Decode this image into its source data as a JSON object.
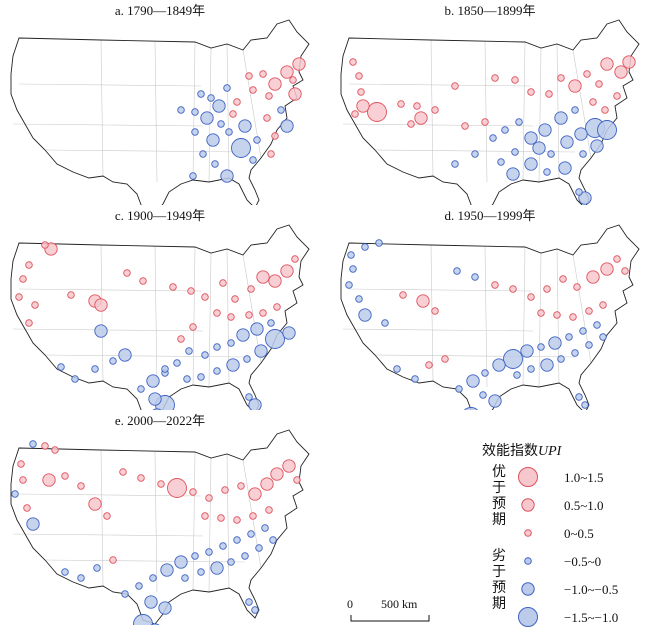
{
  "panels": [
    {
      "title": "a. 1790—1849年",
      "dots": [
        [
          270,
          70,
          2
        ],
        [
          282,
          58,
          2
        ],
        [
          294,
          50,
          2
        ],
        [
          288,
          66,
          1
        ],
        [
          264,
          82,
          1
        ],
        [
          248,
          76,
          1
        ],
        [
          232,
          88,
          1
        ],
        [
          222,
          74,
          -1
        ],
        [
          214,
          92,
          -2
        ],
        [
          202,
          104,
          -2
        ],
        [
          190,
          118,
          -1
        ],
        [
          208,
          126,
          -2
        ],
        [
          224,
          118,
          -1
        ],
        [
          240,
          112,
          -2
        ],
        [
          236,
          134,
          -3
        ],
        [
          252,
          126,
          -1
        ],
        [
          262,
          104,
          1
        ],
        [
          276,
          96,
          -1
        ],
        [
          282,
          112,
          -2
        ],
        [
          266,
          140,
          1
        ],
        [
          190,
          98,
          -1
        ],
        [
          176,
          96,
          -1
        ],
        [
          196,
          80,
          -1
        ],
        [
          206,
          84,
          -1
        ],
        [
          244,
          62,
          1
        ],
        [
          258,
          60,
          1
        ],
        [
          228,
          100,
          1
        ],
        [
          216,
          110,
          -1
        ],
        [
          198,
          140,
          -1
        ],
        [
          210,
          150,
          -1
        ],
        [
          188,
          162,
          -1
        ],
        [
          222,
          162,
          -2
        ],
        [
          248,
          146,
          -1
        ],
        [
          270,
          122,
          1
        ],
        [
          290,
          80,
          2
        ]
      ]
    },
    {
      "title": "b. 1850—1899年",
      "dots": [
        [
          18,
          48,
          1
        ],
        [
          24,
          62,
          1
        ],
        [
          26,
          78,
          1
        ],
        [
          20,
          100,
          1
        ],
        [
          28,
          92,
          2
        ],
        [
          42,
          98,
          3
        ],
        [
          66,
          90,
          1
        ],
        [
          82,
          92,
          1
        ],
        [
          76,
          110,
          1
        ],
        [
          86,
          104,
          2
        ],
        [
          100,
          96,
          1
        ],
        [
          120,
          72,
          1
        ],
        [
          130,
          112,
          1
        ],
        [
          150,
          108,
          1
        ],
        [
          160,
          64,
          1
        ],
        [
          180,
          66,
          1
        ],
        [
          196,
          78,
          1
        ],
        [
          214,
          80,
          1
        ],
        [
          226,
          64,
          1
        ],
        [
          240,
          72,
          2
        ],
        [
          252,
          60,
          1
        ],
        [
          264,
          70,
          1
        ],
        [
          272,
          50,
          2
        ],
        [
          286,
          58,
          2
        ],
        [
          294,
          48,
          2
        ],
        [
          282,
          82,
          1
        ],
        [
          270,
          96,
          1
        ],
        [
          258,
          88,
          1
        ],
        [
          240,
          96,
          -1
        ],
        [
          226,
          104,
          -2
        ],
        [
          210,
          116,
          -2
        ],
        [
          196,
          124,
          -2
        ],
        [
          204,
          134,
          -2
        ],
        [
          216,
          140,
          -1
        ],
        [
          232,
          128,
          -2
        ],
        [
          246,
          120,
          -2
        ],
        [
          260,
          114,
          -3
        ],
        [
          272,
          116,
          -3
        ],
        [
          262,
          132,
          -2
        ],
        [
          248,
          140,
          -1
        ],
        [
          230,
          154,
          -2
        ],
        [
          212,
          158,
          -1
        ],
        [
          196,
          150,
          -2
        ],
        [
          178,
          160,
          -2
        ],
        [
          166,
          148,
          -1
        ],
        [
          180,
          138,
          -1
        ],
        [
          184,
          108,
          -1
        ],
        [
          170,
          116,
          -1
        ],
        [
          158,
          124,
          -1
        ],
        [
          244,
          178,
          -1
        ],
        [
          250,
          184,
          -2
        ],
        [
          140,
          140,
          -1
        ],
        [
          120,
          150,
          -1
        ]
      ]
    },
    {
      "title": "c. 1900—1949年",
      "dots": [
        [
          24,
          46,
          1
        ],
        [
          40,
          26,
          1
        ],
        [
          46,
          30,
          2
        ],
        [
          18,
          60,
          1
        ],
        [
          14,
          78,
          1
        ],
        [
          30,
          86,
          1
        ],
        [
          24,
          104,
          1
        ],
        [
          66,
          76,
          1
        ],
        [
          90,
          82,
          2
        ],
        [
          96,
          86,
          2
        ],
        [
          96,
          112,
          -2
        ],
        [
          122,
          54,
          1
        ],
        [
          138,
          62,
          1
        ],
        [
          168,
          68,
          1
        ],
        [
          186,
          72,
          1
        ],
        [
          200,
          78,
          1
        ],
        [
          218,
          64,
          1
        ],
        [
          230,
          80,
          1
        ],
        [
          246,
          70,
          1
        ],
        [
          258,
          58,
          2
        ],
        [
          270,
          62,
          2
        ],
        [
          282,
          52,
          2
        ],
        [
          290,
          40,
          1
        ],
        [
          212,
          94,
          1
        ],
        [
          226,
          98,
          1
        ],
        [
          244,
          96,
          1
        ],
        [
          258,
          94,
          1
        ],
        [
          272,
          88,
          1
        ],
        [
          266,
          104,
          -1
        ],
        [
          252,
          110,
          -2
        ],
        [
          238,
          116,
          -2
        ],
        [
          226,
          124,
          -1
        ],
        [
          212,
          128,
          -1
        ],
        [
          200,
          136,
          -1
        ],
        [
          184,
          132,
          -1
        ],
        [
          172,
          144,
          -1
        ],
        [
          160,
          154,
          -1
        ],
        [
          148,
          162,
          -2
        ],
        [
          136,
          170,
          -1
        ],
        [
          150,
          180,
          -2
        ],
        [
          160,
          186,
          -3
        ],
        [
          182,
          160,
          -1
        ],
        [
          196,
          158,
          -1
        ],
        [
          212,
          152,
          -1
        ],
        [
          228,
          146,
          -2
        ],
        [
          242,
          140,
          -1
        ],
        [
          256,
          132,
          -2
        ],
        [
          270,
          120,
          -3
        ],
        [
          284,
          114,
          -2
        ],
        [
          120,
          136,
          -2
        ],
        [
          108,
          142,
          -1
        ],
        [
          90,
          150,
          -1
        ],
        [
          70,
          160,
          -1
        ],
        [
          56,
          148,
          -1
        ],
        [
          244,
          178,
          -1
        ],
        [
          250,
          186,
          -2
        ],
        [
          152,
          196,
          -2
        ],
        [
          160,
          150,
          -1
        ],
        [
          176,
          120,
          1
        ],
        [
          188,
          108,
          1
        ]
      ]
    },
    {
      "title": "d. 1950—1999年",
      "dots": [
        [
          16,
          36,
          -1
        ],
        [
          30,
          28,
          -1
        ],
        [
          44,
          24,
          -1
        ],
        [
          18,
          50,
          -1
        ],
        [
          14,
          66,
          -1
        ],
        [
          24,
          80,
          -1
        ],
        [
          30,
          96,
          -2
        ],
        [
          50,
          104,
          -1
        ],
        [
          68,
          76,
          1
        ],
        [
          88,
          82,
          2
        ],
        [
          100,
          92,
          1
        ],
        [
          122,
          52,
          -1
        ],
        [
          140,
          58,
          -1
        ],
        [
          160,
          66,
          1
        ],
        [
          178,
          70,
          1
        ],
        [
          196,
          78,
          1
        ],
        [
          212,
          70,
          1
        ],
        [
          228,
          60,
          1
        ],
        [
          242,
          68,
          1
        ],
        [
          258,
          58,
          2
        ],
        [
          272,
          50,
          2
        ],
        [
          282,
          40,
          1
        ],
        [
          290,
          52,
          1
        ],
        [
          206,
          94,
          1
        ],
        [
          222,
          96,
          1
        ],
        [
          238,
          98,
          1
        ],
        [
          254,
          92,
          1
        ],
        [
          268,
          86,
          1
        ],
        [
          262,
          106,
          -1
        ],
        [
          248,
          112,
          -1
        ],
        [
          234,
          118,
          -1
        ],
        [
          220,
          124,
          -2
        ],
        [
          206,
          128,
          -1
        ],
        [
          192,
          132,
          -2
        ],
        [
          178,
          140,
          -3
        ],
        [
          164,
          146,
          -2
        ],
        [
          150,
          154,
          -1
        ],
        [
          138,
          162,
          -2
        ],
        [
          124,
          170,
          -1
        ],
        [
          148,
          176,
          -1
        ],
        [
          160,
          182,
          -2
        ],
        [
          182,
          156,
          -1
        ],
        [
          196,
          150,
          -1
        ],
        [
          212,
          146,
          -2
        ],
        [
          226,
          140,
          -1
        ],
        [
          240,
          134,
          -1
        ],
        [
          254,
          126,
          -1
        ],
        [
          268,
          118,
          -1
        ],
        [
          110,
          140,
          1
        ],
        [
          94,
          146,
          1
        ],
        [
          80,
          160,
          -1
        ],
        [
          62,
          150,
          -1
        ],
        [
          244,
          178,
          -1
        ],
        [
          250,
          186,
          -1
        ],
        [
          136,
          198,
          -3
        ],
        [
          150,
          206,
          -2
        ],
        [
          142,
          214,
          -1
        ]
      ]
    },
    {
      "title": "e. 2000—2022年",
      "dots": [
        [
          16,
          40,
          1
        ],
        [
          28,
          20,
          -1
        ],
        [
          40,
          22,
          1
        ],
        [
          50,
          26,
          1
        ],
        [
          18,
          56,
          1
        ],
        [
          10,
          70,
          -1
        ],
        [
          22,
          84,
          1
        ],
        [
          28,
          100,
          -2
        ],
        [
          44,
          56,
          2
        ],
        [
          60,
          52,
          1
        ],
        [
          76,
          62,
          1
        ],
        [
          90,
          80,
          2
        ],
        [
          102,
          92,
          1
        ],
        [
          118,
          48,
          1
        ],
        [
          136,
          54,
          1
        ],
        [
          156,
          60,
          1
        ],
        [
          172,
          64,
          3
        ],
        [
          188,
          68,
          1
        ],
        [
          204,
          74,
          1
        ],
        [
          220,
          66,
          1
        ],
        [
          236,
          62,
          1
        ],
        [
          250,
          70,
          2
        ],
        [
          262,
          60,
          2
        ],
        [
          272,
          50,
          2
        ],
        [
          284,
          42,
          2
        ],
        [
          292,
          56,
          1
        ],
        [
          200,
          92,
          1
        ],
        [
          216,
          94,
          1
        ],
        [
          232,
          96,
          1
        ],
        [
          248,
          92,
          1
        ],
        [
          264,
          86,
          1
        ],
        [
          260,
          104,
          -1
        ],
        [
          246,
          110,
          -1
        ],
        [
          232,
          116,
          -1
        ],
        [
          218,
          122,
          -1
        ],
        [
          204,
          128,
          -1
        ],
        [
          190,
          132,
          -1
        ],
        [
          176,
          138,
          -2
        ],
        [
          162,
          146,
          -2
        ],
        [
          148,
          154,
          -1
        ],
        [
          134,
          162,
          -1
        ],
        [
          120,
          170,
          -1
        ],
        [
          146,
          178,
          -2
        ],
        [
          160,
          184,
          -2
        ],
        [
          180,
          154,
          -1
        ],
        [
          196,
          148,
          -1
        ],
        [
          212,
          144,
          -2
        ],
        [
          226,
          138,
          -1
        ],
        [
          240,
          132,
          -1
        ],
        [
          254,
          124,
          -1
        ],
        [
          268,
          116,
          -1
        ],
        [
          108,
          136,
          1
        ],
        [
          92,
          144,
          -1
        ],
        [
          76,
          154,
          -1
        ],
        [
          60,
          148,
          -1
        ],
        [
          244,
          178,
          -1
        ],
        [
          250,
          186,
          -1
        ],
        [
          138,
          200,
          -3
        ],
        [
          150,
          206,
          -2
        ],
        [
          134,
          212,
          -1
        ]
      ]
    }
  ],
  "legend": {
    "title": "效能指数",
    "title_var": "UPI",
    "group_better": "优于预期",
    "group_worse": "劣于预期",
    "items": [
      {
        "label": "1.0~1.5",
        "cls": 3
      },
      {
        "label": "0.5~1.0",
        "cls": 2
      },
      {
        "label": "0~0.5",
        "cls": 1
      },
      {
        "label": "−0.5~0",
        "cls": -1
      },
      {
        "label": "−1.0~−0.5",
        "cls": -2
      },
      {
        "label": "−1.5~−1.0",
        "cls": -3
      }
    ]
  },
  "scale": {
    "zero": "0",
    "dist": "500 km"
  },
  "colors": {
    "pos_fill": "#f6c7cc",
    "pos_stroke": "#e0525c",
    "neg_fill": "#bccbea",
    "neg_stroke": "#3e62c4",
    "outline": "#222222",
    "border": "#c9c9c9"
  }
}
